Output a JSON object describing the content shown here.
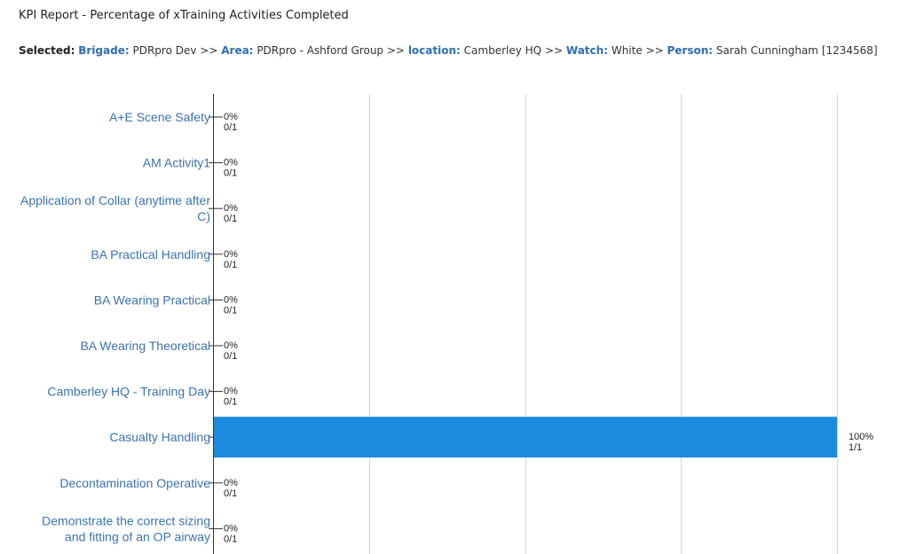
{
  "report": {
    "title": "KPI Report - Percentage of xTraining Activities Completed"
  },
  "selection": {
    "selected_label": "Selected:",
    "items": [
      {
        "key": "Brigade:",
        "value": "PDRpro Dev"
      },
      {
        "key": "Area:",
        "value": "PDRpro - Ashford Group"
      },
      {
        "key": "location:",
        "value": "Camberley HQ"
      },
      {
        "key": "Watch:",
        "value": "White"
      },
      {
        "key": "Person:",
        "value": "Sarah Cunningham [1234568]"
      }
    ],
    "separator": ">>"
  },
  "chart_data": {
    "type": "bar",
    "orientation": "horizontal",
    "categories": [
      [
        "A+E Scene Safety"
      ],
      [
        "AM Activity1"
      ],
      [
        "Application of Collar (anytime after",
        "C)"
      ],
      [
        "BA Practical Handling"
      ],
      [
        "BA Wearing Practical"
      ],
      [
        "BA Wearing Theoretical"
      ],
      [
        "Camberley HQ - Training Day"
      ],
      [
        "Casualty Handling"
      ],
      [
        "Decontamination Operative"
      ],
      [
        "Demonstrate the correct sizing",
        "and fitting of an OP airway"
      ]
    ],
    "values": [
      0,
      0,
      0,
      0,
      0,
      0,
      0,
      100,
      0,
      0
    ],
    "value_labels": [
      "0%",
      "0%",
      "0%",
      "0%",
      "0%",
      "0%",
      "0%",
      "100%",
      "0%",
      "0%"
    ],
    "ratio_labels": [
      "0/1",
      "0/1",
      "0/1",
      "0/1",
      "0/1",
      "0/1",
      "0/1",
      "1/1",
      "0/1",
      "0/1"
    ],
    "xlim": [
      0,
      100
    ],
    "grid": true,
    "bar_color": "#1b8be0"
  }
}
